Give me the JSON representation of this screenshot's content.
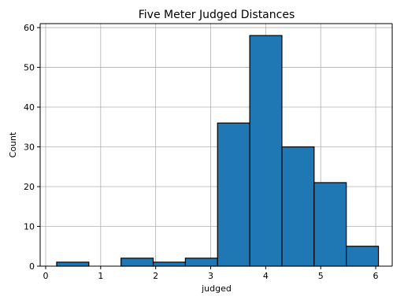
{
  "chart_data": {
    "type": "bar",
    "title": "Five Meter Judged Distances",
    "xlabel": "judged",
    "ylabel": "Count",
    "xlim": [
      -0.1,
      6.3
    ],
    "ylim": [
      0,
      61
    ],
    "xticks": [
      0,
      1,
      2,
      3,
      4,
      5,
      6
    ],
    "yticks": [
      0,
      10,
      20,
      30,
      40,
      50,
      60
    ],
    "grid": true,
    "bin_edges": [
      0.2,
      0.785,
      1.37,
      1.955,
      2.54,
      3.125,
      3.71,
      4.295,
      4.88,
      5.465,
      6.05
    ],
    "values": [
      1,
      0,
      2,
      1,
      2,
      36,
      58,
      30,
      21,
      5
    ],
    "bar_color": "#1f77b4",
    "edge_color": "#000000"
  }
}
